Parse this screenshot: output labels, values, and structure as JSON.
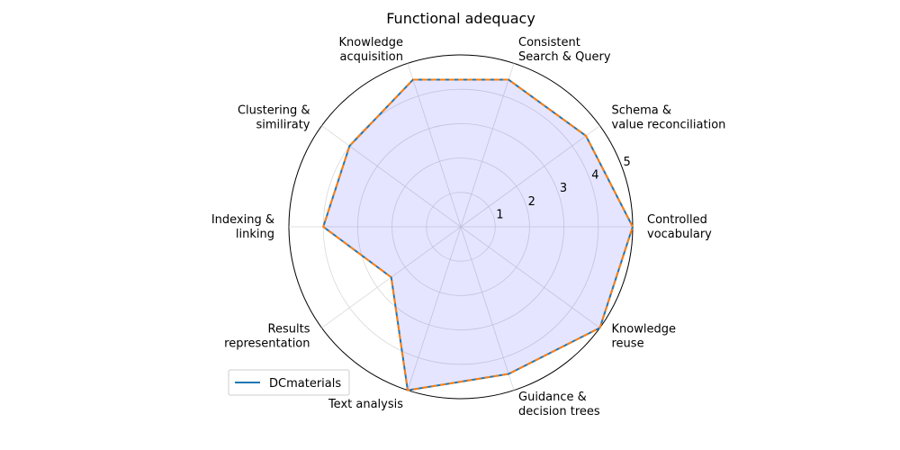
{
  "chart_data": {
    "type": "radar",
    "title": "Functional adequacy",
    "categories": [
      "Controlled\nvocabulary",
      "Schema &\nvalue reconciliation",
      "Consistent\nSearch & Query",
      "Knowledge\nacquisition",
      "Clustering &\nsimiliraty",
      "Indexing &\nlinking",
      "Results\nrepresentation",
      "Text analysis",
      "Guidance &\ndecision trees",
      "Knowledge\nreuse"
    ],
    "rlim": [
      0,
      5
    ],
    "rticks": [
      1,
      2,
      3,
      4,
      5
    ],
    "rtick_labels": [
      "1",
      "2",
      "3",
      "4",
      "5"
    ],
    "grid": true,
    "legend_position": "lower-left",
    "series": [
      {
        "name": "DCmaterials",
        "values": [
          5,
          4.5,
          4.5,
          4.5,
          4.0,
          4.0,
          2.5,
          5,
          4.5,
          5
        ],
        "color": "#1f77b4"
      },
      {
        "values": [
          5,
          4.5,
          4.5,
          4.5,
          4.0,
          4.0,
          2.5,
          5,
          4.5,
          5
        ],
        "color": "#ff7f0e",
        "line_style": "dashed"
      }
    ],
    "fill_color": "#0000ff",
    "fill_opacity": 0.1
  }
}
